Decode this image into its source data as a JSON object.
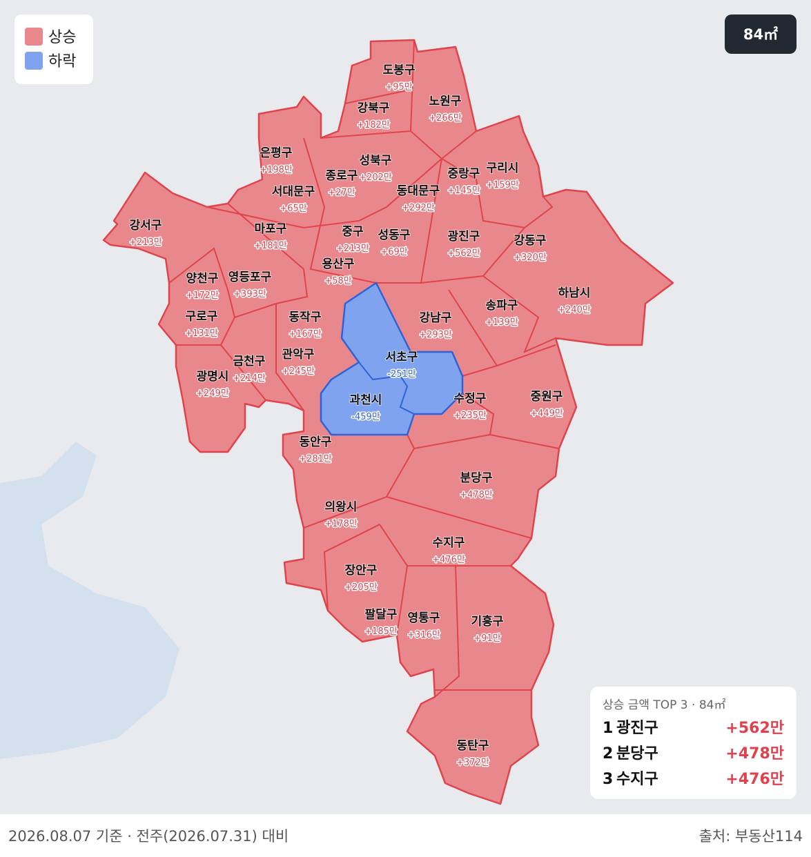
{
  "legend": {
    "up": "상승",
    "down": "하락"
  },
  "badge": "84㎡",
  "regions": [
    {
      "name": "도봉구",
      "change": "+95만",
      "trend": "up"
    },
    {
      "name": "노원구",
      "change": "+266만",
      "trend": "up"
    },
    {
      "name": "강북구",
      "change": "+182만",
      "trend": "up"
    },
    {
      "name": "은평구",
      "change": "+198만",
      "trend": "up"
    },
    {
      "name": "성북구",
      "change": "+202만",
      "trend": "up"
    },
    {
      "name": "종로구",
      "change": "+27만",
      "trend": "up"
    },
    {
      "name": "중랑구",
      "change": "+145만",
      "trend": "up"
    },
    {
      "name": "구리시",
      "change": "+159만",
      "trend": "up"
    },
    {
      "name": "서대문구",
      "change": "+65만",
      "trend": "up"
    },
    {
      "name": "동대문구",
      "change": "+292만",
      "trend": "up"
    },
    {
      "name": "강서구",
      "change": "+213만",
      "trend": "up"
    },
    {
      "name": "마포구",
      "change": "+181만",
      "trend": "up"
    },
    {
      "name": "중구",
      "change": "+213만",
      "trend": "up"
    },
    {
      "name": "성동구",
      "change": "+69만",
      "trend": "up"
    },
    {
      "name": "광진구",
      "change": "+562만",
      "trend": "up"
    },
    {
      "name": "강동구",
      "change": "+320만",
      "trend": "up"
    },
    {
      "name": "용산구",
      "change": "+58만",
      "trend": "up"
    },
    {
      "name": "양천구",
      "change": "+172만",
      "trend": "up"
    },
    {
      "name": "영등포구",
      "change": "+393만",
      "trend": "up"
    },
    {
      "name": "하남시",
      "change": "+240만",
      "trend": "up"
    },
    {
      "name": "송파구",
      "change": "+139만",
      "trend": "up"
    },
    {
      "name": "동작구",
      "change": "+167만",
      "trend": "up"
    },
    {
      "name": "강남구",
      "change": "+293만",
      "trend": "up"
    },
    {
      "name": "구로구",
      "change": "+131만",
      "trend": "up"
    },
    {
      "name": "관악구",
      "change": "+245만",
      "trend": "up"
    },
    {
      "name": "서초구",
      "change": "-251만",
      "trend": "down"
    },
    {
      "name": "금천구",
      "change": "+214만",
      "trend": "up"
    },
    {
      "name": "광명시",
      "change": "+249만",
      "trend": "up"
    },
    {
      "name": "과천시",
      "change": "-459만",
      "trend": "down"
    },
    {
      "name": "수정구",
      "change": "+235만",
      "trend": "up"
    },
    {
      "name": "중원구",
      "change": "+449만",
      "trend": "up"
    },
    {
      "name": "동안구",
      "change": "+281만",
      "trend": "up"
    },
    {
      "name": "분당구",
      "change": "+478만",
      "trend": "up"
    },
    {
      "name": "의왕시",
      "change": "+178만",
      "trend": "up"
    },
    {
      "name": "수지구",
      "change": "+476만",
      "trend": "up"
    },
    {
      "name": "장안구",
      "change": "+205만",
      "trend": "up"
    },
    {
      "name": "기흥구",
      "change": "+91만",
      "trend": "up"
    },
    {
      "name": "팔달구",
      "change": "+185만",
      "trend": "up"
    },
    {
      "name": "영통구",
      "change": "+316만",
      "trend": "up"
    },
    {
      "name": "동탄구",
      "change": "+372만",
      "trend": "up"
    }
  ],
  "top3": {
    "title": "상승 금액 TOP 3 · 84㎡",
    "rows": [
      {
        "rank": 1,
        "name": "광진구",
        "change": "+562만"
      },
      {
        "rank": 2,
        "name": "분당구",
        "change": "+478만"
      },
      {
        "rank": 3,
        "name": "수지구",
        "change": "+476만"
      }
    ]
  },
  "footer": {
    "basis": "2026.08.07 기준 · 전주(2026.07.31) 대비",
    "source": "출처: 부동산114"
  }
}
